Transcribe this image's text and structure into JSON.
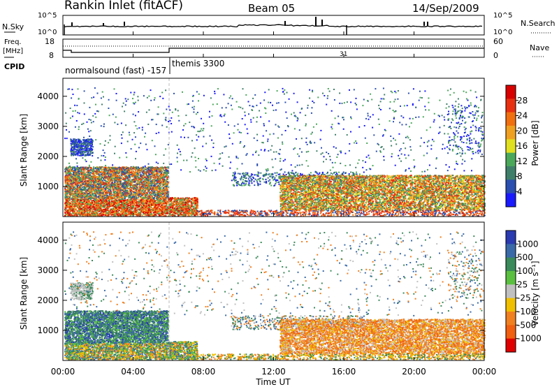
{
  "header": {
    "title": "Rankin Inlet (fitACF)",
    "beam": "Beam 05",
    "date": "14/Sep/2009"
  },
  "panel_labels": {
    "nsky": "N.Sky",
    "nsearch": "N.Search",
    "freq_line1": "Freq.",
    "freq_line2": "[MHz]",
    "nave": "Nave",
    "cpid": "CPID"
  },
  "cpid_segments": [
    {
      "label": "normalsound (fast)  -157"
    },
    {
      "label": "themis 3300"
    }
  ],
  "colors": {
    "power_scale": [
      "#1a1aff",
      "#2a4fb0",
      "#3f7f6a",
      "#4aa85a",
      "#e0e020",
      "#f0a020",
      "#f07010",
      "#e83010",
      "#d80000"
    ],
    "velocity_scale": [
      "#2a3ab0",
      "#3a6aa8",
      "#3a8a5a",
      "#5ac040",
      "#c0c0c0",
      "#f0c000",
      "#f08020",
      "#f06010",
      "#e00000"
    ],
    "dashed_marker": "#bbbbbb"
  },
  "chart_data": [
    {
      "type": "line",
      "title": "Rankin Inlet (fitACF)",
      "series": [
        {
          "name": "N.Sky"
        },
        {
          "name": "N.Search"
        }
      ],
      "ylabel_left": "N.Sky",
      "ylabel_right": "N.Search",
      "yticks_left": [
        "10^5",
        "10^0"
      ],
      "yticks_right": [
        "10^5",
        "10^0"
      ],
      "xlim": [
        "00:00",
        "24:00"
      ]
    },
    {
      "type": "line",
      "series": [
        {
          "name": "Freq."
        },
        {
          "name": "Nave"
        }
      ],
      "ylabel_left": "Freq. [MHz]",
      "ylabel_right": "Nave",
      "yticks_left": [
        "18",
        "8"
      ],
      "yticks_right": [
        "60",
        "0"
      ],
      "annotation": "31"
    },
    {
      "type": "heatmap",
      "ylabel": "Slant Range [km]",
      "yticks": [
        "1000",
        "2000",
        "3000",
        "4000"
      ],
      "colorbar_label": "Power [dB]",
      "colorbar_ticks": [
        "4",
        "8",
        "12",
        "16",
        "20",
        "24",
        "28"
      ]
    },
    {
      "type": "heatmap",
      "ylabel": "Slant Range [km]",
      "yticks": [
        "1000",
        "2000",
        "3000",
        "4000"
      ],
      "colorbar_label": "Velocity [m s⁻¹]",
      "colorbar_ticks": [
        "1000",
        "500",
        "100",
        "25",
        "-25",
        "-100",
        "-500",
        "-1000"
      ],
      "xlabel": "Time UT",
      "xticks": [
        "00:00",
        "04:00",
        "08:00",
        "12:00",
        "16:00",
        "20:00",
        "00:00"
      ]
    }
  ]
}
